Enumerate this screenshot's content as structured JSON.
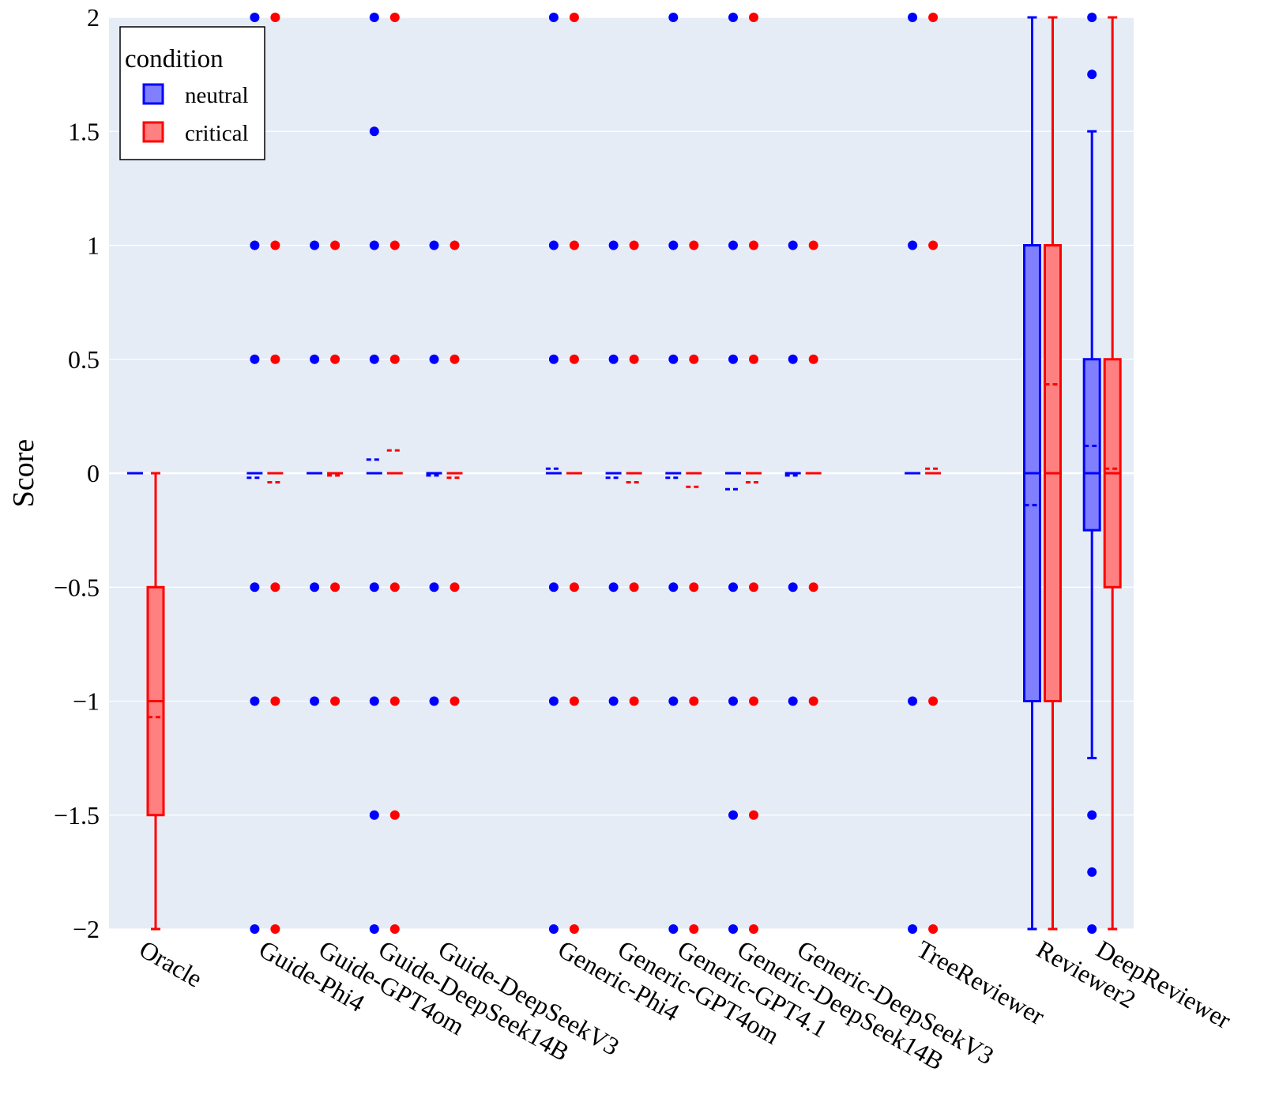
{
  "chart_data": {
    "type": "box",
    "title": "",
    "xlabel": "",
    "ylabel": "Score",
    "ylim": [
      -2,
      2
    ],
    "yticks": [
      {
        "value": 2,
        "label": "2"
      },
      {
        "value": 1.5,
        "label": "1.5"
      },
      {
        "value": 1,
        "label": "1"
      },
      {
        "value": 0.5,
        "label": "0.5"
      },
      {
        "value": 0,
        "label": "0"
      },
      {
        "value": -0.5,
        "label": "−0.5"
      },
      {
        "value": -1,
        "label": "−1"
      },
      {
        "value": -1.5,
        "label": "−1.5"
      },
      {
        "value": -2,
        "label": "−2"
      }
    ],
    "grid": true,
    "legend": {
      "title": "condition",
      "placement": "top-left",
      "entries": [
        {
          "name": "neutral",
          "color": "#0000ff",
          "fill": "#8080ff"
        },
        {
          "name": "critical",
          "color": "#ff0000",
          "fill": "#ff8080"
        }
      ]
    },
    "categories": [
      {
        "label": "Oracle",
        "slot": 0
      },
      {
        "label": "Guide-Phi4",
        "slot": 2
      },
      {
        "label": "Guide-GPT4om",
        "slot": 3
      },
      {
        "label": "Guide-DeepSeek14B",
        "slot": 4
      },
      {
        "label": "Guide-DeepSeekV3",
        "slot": 5
      },
      {
        "label": "Generic-Phi4",
        "slot": 7
      },
      {
        "label": "Generic-GPT4om",
        "slot": 8
      },
      {
        "label": "Generic-GPT4.1",
        "slot": 9
      },
      {
        "label": "Generic-DeepSeek14B",
        "slot": 10
      },
      {
        "label": "Generic-DeepSeekV3",
        "slot": 11
      },
      {
        "label": "TreeReviewer",
        "slot": 13
      },
      {
        "label": "Reviewer2",
        "slot": 15
      },
      {
        "label": "DeepReviewer",
        "slot": 16
      }
    ],
    "series": [
      {
        "name": "neutral",
        "color": "#0000ff",
        "fill": "#8080ff",
        "boxes": [
          {
            "q1": 0,
            "median": 0,
            "q3": 0,
            "mean": 0,
            "whisker_low": 0,
            "whisker_high": 0,
            "outliers": []
          },
          {
            "q1": 0,
            "median": 0,
            "q3": 0,
            "mean": -0.02,
            "whisker_low": 0,
            "whisker_high": 0,
            "outliers": [
              2,
              1,
              0.5,
              -0.5,
              -1,
              -2
            ]
          },
          {
            "q1": 0,
            "median": 0,
            "q3": 0,
            "mean": 0,
            "whisker_low": 0,
            "whisker_high": 0,
            "outliers": [
              1,
              0.5,
              -0.5,
              -1
            ]
          },
          {
            "q1": 0,
            "median": 0,
            "q3": 0,
            "mean": 0.06,
            "whisker_low": 0,
            "whisker_high": 0,
            "outliers": [
              2,
              1.5,
              1,
              0.5,
              -0.5,
              -1,
              -1.5,
              -2
            ]
          },
          {
            "q1": 0,
            "median": 0,
            "q3": 0,
            "mean": -0.01,
            "whisker_low": 0,
            "whisker_high": 0,
            "outliers": [
              1,
              0.5,
              -0.5,
              -1
            ]
          },
          {
            "q1": 0,
            "median": 0,
            "q3": 0,
            "mean": 0.02,
            "whisker_low": 0,
            "whisker_high": 0,
            "outliers": [
              2,
              1,
              0.5,
              -0.5,
              -1,
              -2
            ]
          },
          {
            "q1": 0,
            "median": 0,
            "q3": 0,
            "mean": -0.02,
            "whisker_low": 0,
            "whisker_high": 0,
            "outliers": [
              1,
              0.5,
              -0.5,
              -1
            ]
          },
          {
            "q1": 0,
            "median": 0,
            "q3": 0,
            "mean": -0.02,
            "whisker_low": 0,
            "whisker_high": 0,
            "outliers": [
              2,
              1,
              0.5,
              -0.5,
              -1,
              -2
            ]
          },
          {
            "q1": 0,
            "median": 0,
            "q3": 0,
            "mean": -0.07,
            "whisker_low": 0,
            "whisker_high": 0,
            "outliers": [
              2,
              1,
              0.5,
              -0.5,
              -1,
              -1.5,
              -2
            ]
          },
          {
            "q1": 0,
            "median": 0,
            "q3": 0,
            "mean": -0.01,
            "whisker_low": 0,
            "whisker_high": 0,
            "outliers": [
              1,
              0.5,
              -0.5,
              -1
            ]
          },
          {
            "q1": 0,
            "median": 0,
            "q3": 0,
            "mean": 0,
            "whisker_low": 0,
            "whisker_high": 0,
            "outliers": [
              2,
              1,
              -1,
              -2
            ]
          },
          {
            "q1": -1,
            "median": 0,
            "q3": 1,
            "mean": -0.14,
            "whisker_low": -2,
            "whisker_high": 2,
            "outliers": []
          },
          {
            "q1": -0.25,
            "median": 0,
            "q3": 0.5,
            "mean": 0.12,
            "whisker_low": -1.25,
            "whisker_high": 1.5,
            "outliers": [
              2,
              1.75,
              -1.5,
              -1.75,
              -2
            ]
          }
        ]
      },
      {
        "name": "critical",
        "color": "#ff0000",
        "fill": "#ff8080",
        "boxes": [
          {
            "q1": -1.5,
            "median": -1,
            "q3": -0.5,
            "mean": -1.07,
            "whisker_low": -2,
            "whisker_high": 0,
            "outliers": []
          },
          {
            "q1": 0,
            "median": 0,
            "q3": 0,
            "mean": -0.04,
            "whisker_low": 0,
            "whisker_high": 0,
            "outliers": [
              2,
              1,
              0.5,
              -0.5,
              -1,
              -2
            ]
          },
          {
            "q1": 0,
            "median": 0,
            "q3": 0,
            "mean": -0.01,
            "whisker_low": 0,
            "whisker_high": 0,
            "outliers": [
              1,
              0.5,
              -0.5,
              -1
            ]
          },
          {
            "q1": 0,
            "median": 0,
            "q3": 0,
            "mean": 0.1,
            "whisker_low": 0,
            "whisker_high": 0,
            "outliers": [
              2,
              1,
              0.5,
              -0.5,
              -1,
              -1.5,
              -2
            ]
          },
          {
            "q1": 0,
            "median": 0,
            "q3": 0,
            "mean": -0.02,
            "whisker_low": 0,
            "whisker_high": 0,
            "outliers": [
              1,
              0.5,
              -0.5,
              -1
            ]
          },
          {
            "q1": 0,
            "median": 0,
            "q3": 0,
            "mean": 0,
            "whisker_low": 0,
            "whisker_high": 0,
            "outliers": [
              2,
              1,
              0.5,
              -0.5,
              -1,
              -2
            ]
          },
          {
            "q1": 0,
            "median": 0,
            "q3": 0,
            "mean": -0.04,
            "whisker_low": 0,
            "whisker_high": 0,
            "outliers": [
              1,
              0.5,
              -0.5,
              -1
            ]
          },
          {
            "q1": 0,
            "median": 0,
            "q3": 0,
            "mean": -0.06,
            "whisker_low": 0,
            "whisker_high": 0,
            "outliers": [
              1,
              0.5,
              -0.5,
              -1,
              -2
            ]
          },
          {
            "q1": 0,
            "median": 0,
            "q3": 0,
            "mean": -0.04,
            "whisker_low": 0,
            "whisker_high": 0,
            "outliers": [
              2,
              1,
              0.5,
              -0.5,
              -1,
              -1.5,
              -2
            ]
          },
          {
            "q1": 0,
            "median": 0,
            "q3": 0,
            "mean": 0,
            "whisker_low": 0,
            "whisker_high": 0,
            "outliers": [
              1,
              0.5,
              -0.5,
              -1
            ]
          },
          {
            "q1": 0,
            "median": 0,
            "q3": 0,
            "mean": 0.02,
            "whisker_low": 0,
            "whisker_high": 0,
            "outliers": [
              2,
              1,
              -1,
              -2
            ]
          },
          {
            "q1": -1,
            "median": 0,
            "q3": 1,
            "mean": 0.39,
            "whisker_low": -2,
            "whisker_high": 2,
            "outliers": []
          },
          {
            "q1": -0.5,
            "median": 0,
            "q3": 0.5,
            "mean": 0.02,
            "whisker_low": -2,
            "whisker_high": 2,
            "outliers": []
          }
        ]
      }
    ]
  }
}
